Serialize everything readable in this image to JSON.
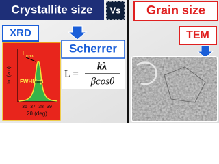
{
  "header": {
    "left_title": "Crystallite size",
    "vs": "Vs",
    "right_title": "Grain size"
  },
  "labels": {
    "xrd": "XRD",
    "tem": "TEM",
    "scherrer": "Scherrer"
  },
  "plot": {
    "y_label": "Int (a.u)",
    "imax": "I",
    "imax_sub": "max",
    "fwhm": "FWHM=β",
    "ticks": [
      "36",
      "37",
      "38",
      "39"
    ],
    "x_label": "2θ (deg)"
  },
  "formula": {
    "lhs": "L =",
    "numerator": "kλ",
    "denominator": "βcosθ"
  }
}
